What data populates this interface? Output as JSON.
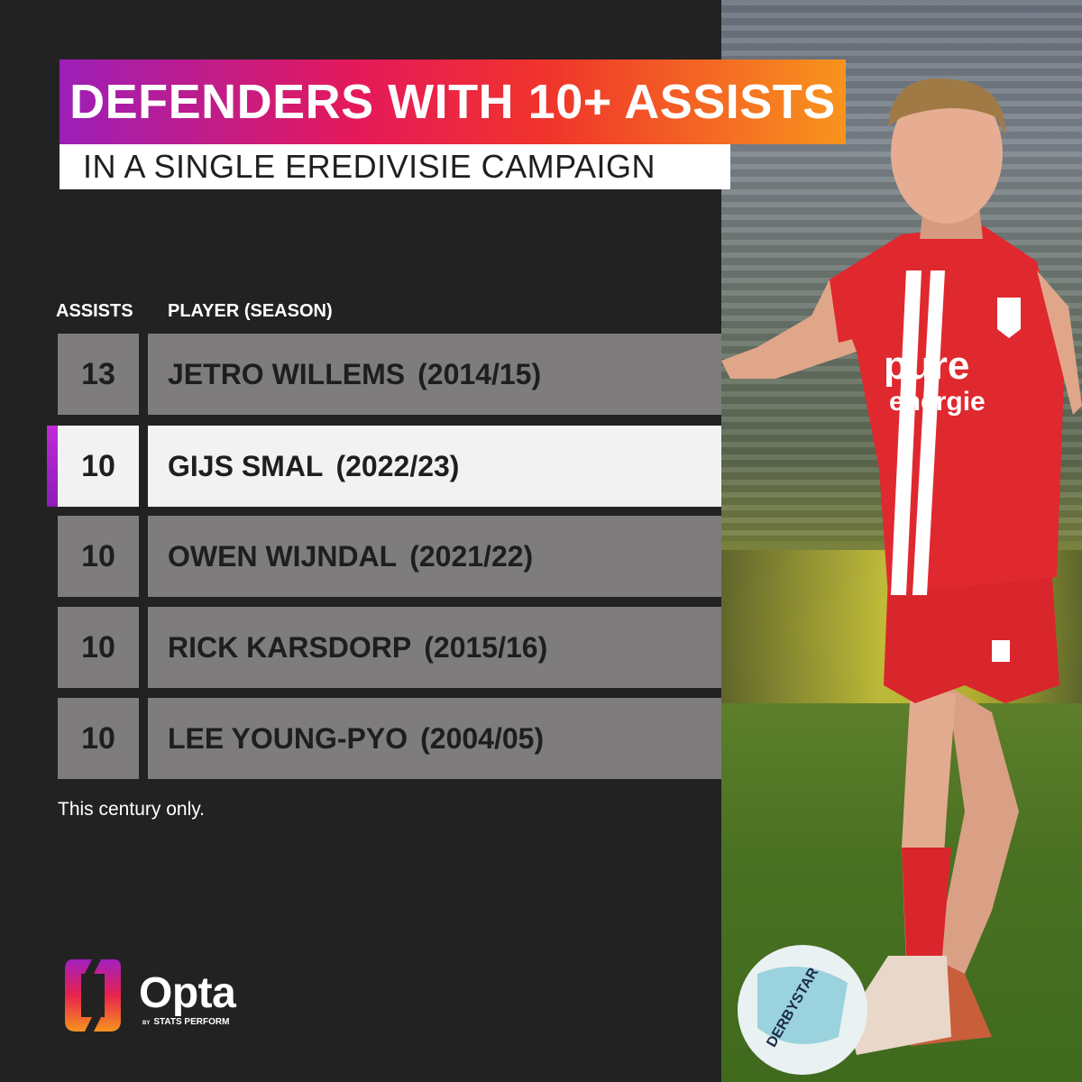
{
  "header": {
    "title": "DEFENDERS WITH 10+ ASSISTS",
    "subtitle": "IN A SINGLE EREDIVISIE CAMPAIGN"
  },
  "table": {
    "columns": [
      "ASSISTS",
      "PLAYER (SEASON)"
    ],
    "rows": [
      {
        "assists": "13",
        "player": "JETRO WILLEMS",
        "season": "(2014/15)",
        "highlighted": false
      },
      {
        "assists": "10",
        "player": "GIJS SMAL",
        "season": "(2022/23)",
        "highlighted": true
      },
      {
        "assists": "10",
        "player": "OWEN WIJNDAL",
        "season": "(2021/22)",
        "highlighted": false
      },
      {
        "assists": "10",
        "player": "RICK KARSDORP",
        "season": "(2015/16)",
        "highlighted": false
      },
      {
        "assists": "10",
        "player": "LEE YOUNG-PYO",
        "season": "(2004/05)",
        "highlighted": false
      }
    ]
  },
  "footnote": "This century only.",
  "logo": {
    "wordmark": "Opta",
    "by": "BY",
    "byline": "STATS PERFORM"
  },
  "colors": {
    "background": "#232223",
    "row": "#7e7c7d",
    "row_highlight": "#f2f2f2",
    "accent_purple": "#9c1fb8",
    "accent_red": "#e5195a",
    "accent_orange": "#f7941d"
  },
  "photo": {
    "description_icon": "player-photo",
    "shirt_text": [
      "pure",
      "energie"
    ]
  }
}
